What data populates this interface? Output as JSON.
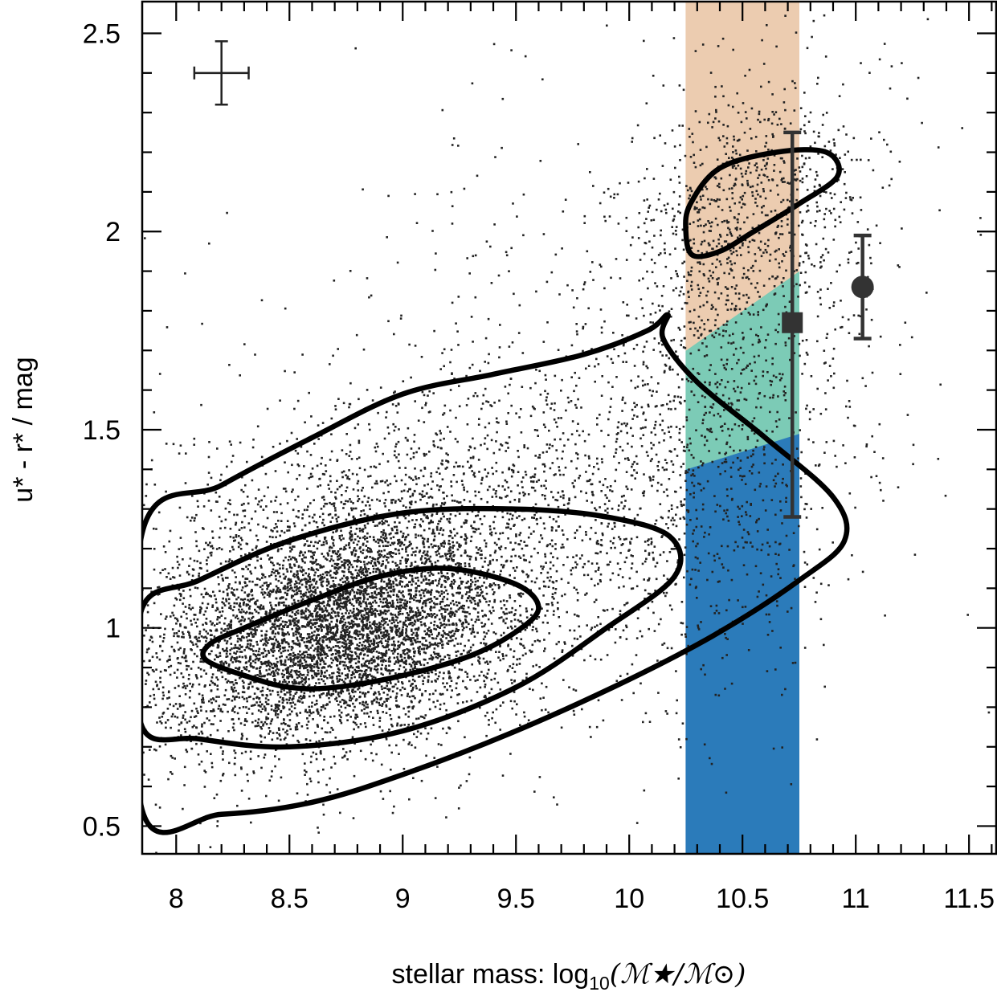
{
  "chart_data": {
    "type": "scatter",
    "title": "",
    "xlabel_prefix": "stellar mass: log",
    "xlabel_sub": "10",
    "xlabel_math": "(ℳ★/ℳ⊙)",
    "ylabel": "u* - r* / mag",
    "xlim": [
      7.85,
      11.62
    ],
    "ylim": [
      0.43,
      2.58
    ],
    "xticks": [
      8,
      8.5,
      9,
      9.5,
      10,
      10.5,
      11,
      11.5
    ],
    "xtick_labels": [
      "8",
      "8.5",
      "9",
      "9.5",
      "10",
      "10.5",
      "11",
      "11.5"
    ],
    "yticks": [
      0.5,
      1,
      1.5,
      2,
      2.5
    ],
    "ytick_labels": [
      "0.5",
      "1",
      "1.5",
      "2",
      "2.5"
    ],
    "bands": {
      "x_range": [
        10.25,
        10.75
      ],
      "segments": [
        {
          "name": "blue",
          "color": "#2b7bba",
          "y_bottom_left": 0.43,
          "y_bottom_right": 0.43,
          "y_top_left": 1.4,
          "y_top_right": 1.49
        },
        {
          "name": "green",
          "color": "#7ccbb6",
          "y_bottom_left": 1.4,
          "y_bottom_right": 1.49,
          "y_top_left": 1.7,
          "y_top_right": 1.9
        },
        {
          "name": "orange",
          "color": "#ecccb0",
          "y_bottom_left": 1.7,
          "y_bottom_right": 1.9,
          "y_top_left": 2.58,
          "y_top_right": 2.58
        }
      ]
    },
    "contours": [
      {
        "name": "inner-blue-contour",
        "points": [
          [
            8.13,
            0.92
          ],
          [
            8.3,
            0.88
          ],
          [
            8.5,
            0.85
          ],
          [
            8.7,
            0.85
          ],
          [
            9.0,
            0.88
          ],
          [
            9.3,
            0.93
          ],
          [
            9.5,
            0.99
          ],
          [
            9.6,
            1.05
          ],
          [
            9.5,
            1.11
          ],
          [
            9.2,
            1.15
          ],
          [
            8.9,
            1.13
          ],
          [
            8.6,
            1.07
          ],
          [
            8.3,
            1.0
          ],
          [
            8.15,
            0.96
          ]
        ]
      },
      {
        "name": "middle-blue-contour",
        "points": [
          [
            7.85,
            0.75
          ],
          [
            8.1,
            0.72
          ],
          [
            8.5,
            0.7
          ],
          [
            9.0,
            0.74
          ],
          [
            9.5,
            0.85
          ],
          [
            9.9,
            1.0
          ],
          [
            10.2,
            1.13
          ],
          [
            10.18,
            1.23
          ],
          [
            9.9,
            1.28
          ],
          [
            9.5,
            1.3
          ],
          [
            9.0,
            1.29
          ],
          [
            8.5,
            1.22
          ],
          [
            8.1,
            1.12
          ],
          [
            7.85,
            1.05
          ]
        ]
      },
      {
        "name": "outer-contour",
        "points": [
          [
            7.85,
            0.54
          ],
          [
            8.2,
            0.53
          ],
          [
            8.6,
            0.56
          ],
          [
            9.0,
            0.63
          ],
          [
            9.5,
            0.74
          ],
          [
            10.0,
            0.87
          ],
          [
            10.4,
            0.99
          ],
          [
            10.75,
            1.12
          ],
          [
            10.95,
            1.22
          ],
          [
            10.9,
            1.33
          ],
          [
            10.6,
            1.48
          ],
          [
            10.3,
            1.62
          ],
          [
            10.15,
            1.73
          ],
          [
            10.17,
            1.79
          ],
          [
            10.08,
            1.75
          ],
          [
            9.8,
            1.69
          ],
          [
            9.4,
            1.64
          ],
          [
            9.0,
            1.59
          ],
          [
            8.6,
            1.48
          ],
          [
            8.2,
            1.36
          ],
          [
            7.85,
            1.24
          ]
        ]
      },
      {
        "name": "red-sequence-contour",
        "points": [
          [
            10.25,
            2.0
          ],
          [
            10.28,
            1.94
          ],
          [
            10.4,
            1.95
          ],
          [
            10.55,
            2.0
          ],
          [
            10.75,
            2.07
          ],
          [
            10.92,
            2.14
          ],
          [
            10.87,
            2.2
          ],
          [
            10.65,
            2.2
          ],
          [
            10.4,
            2.16
          ],
          [
            10.27,
            2.07
          ]
        ]
      }
    ],
    "reference_points": [
      {
        "name": "square-marker",
        "shape": "square",
        "x": 10.72,
        "y": 1.77,
        "yerr_low": 1.28,
        "yerr_high": 2.25
      },
      {
        "name": "circle-marker",
        "shape": "circle",
        "x": 11.03,
        "y": 1.86,
        "yerr_low": 1.73,
        "yerr_high": 1.99
      }
    ],
    "typical_error": {
      "x": 8.2,
      "y": 2.4,
      "xerr": 0.12,
      "yerr": 0.08
    },
    "scatter": {
      "color": "#222222",
      "clusters": [
        {
          "cx": 8.75,
          "cy": 1.0,
          "sx": 0.35,
          "sy": 0.13,
          "corr": 0.3,
          "n": 3800
        },
        {
          "cx": 8.6,
          "cy": 1.05,
          "sx": 0.55,
          "sy": 0.22,
          "corr": 0.3,
          "n": 2600
        },
        {
          "cx": 9.5,
          "cy": 1.25,
          "sx": 0.6,
          "sy": 0.25,
          "corr": 0.25,
          "n": 1400
        },
        {
          "cx": 10.5,
          "cy": 2.05,
          "sx": 0.28,
          "sy": 0.17,
          "corr": 0.3,
          "n": 800
        },
        {
          "cx": 10.4,
          "cy": 1.5,
          "sx": 0.33,
          "sy": 0.32,
          "corr": 0.2,
          "n": 800
        },
        {
          "cx": 9.7,
          "cy": 1.6,
          "sx": 0.75,
          "sy": 0.45,
          "corr": 0.2,
          "n": 400
        }
      ]
    }
  }
}
